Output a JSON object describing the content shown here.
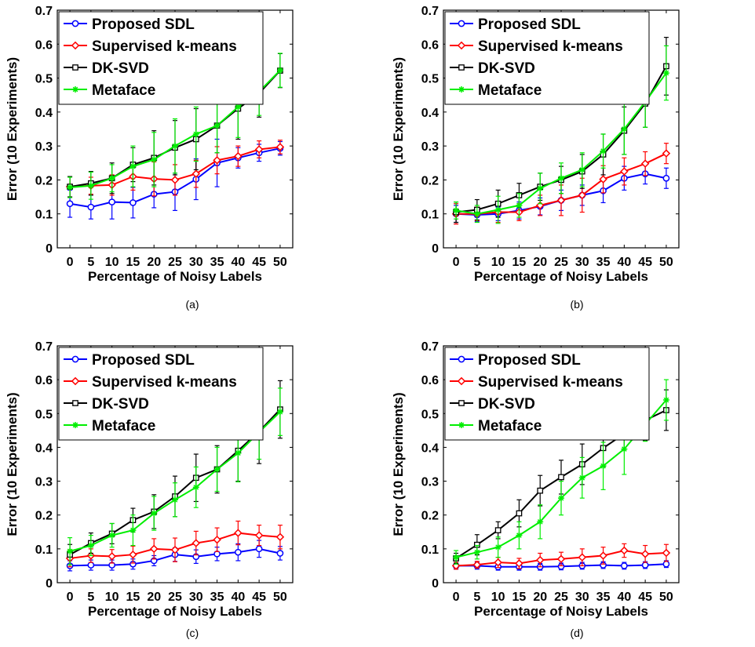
{
  "chart_data": [
    {
      "panel": "(a)",
      "type": "line",
      "xlabel": "Percentage of Noisy Labels",
      "ylabel": "Error (10 Experiments)",
      "x": [
        0,
        5,
        10,
        15,
        20,
        25,
        30,
        35,
        40,
        45,
        50
      ],
      "xlim": [
        -3,
        53
      ],
      "ylim": [
        0,
        0.7
      ],
      "yticks": [
        "0",
        "0.1",
        "0.2",
        "0.3",
        "0.4",
        "0.5",
        "0.6",
        "0.7"
      ],
      "legend_position": "top-left",
      "series": [
        {
          "name": "Proposed SDL",
          "color": "#0000ff",
          "marker": "circle",
          "values": [
            0.13,
            0.12,
            0.135,
            0.133,
            0.158,
            0.165,
            0.202,
            0.25,
            0.265,
            0.28,
            0.293
          ],
          "errors": [
            0.04,
            0.035,
            0.05,
            0.045,
            0.04,
            0.055,
            0.06,
            0.07,
            0.03,
            0.025,
            0.02
          ]
        },
        {
          "name": "Supervised k-means",
          "color": "#ff0000",
          "marker": "diamond",
          "values": [
            0.18,
            0.183,
            0.185,
            0.21,
            0.203,
            0.2,
            0.218,
            0.258,
            0.27,
            0.29,
            0.297
          ],
          "errors": [
            0.03,
            0.025,
            0.03,
            0.04,
            0.05,
            0.045,
            0.04,
            0.04,
            0.03,
            0.025,
            0.02
          ]
        },
        {
          "name": "DK-SVD",
          "color": "#000000",
          "marker": "square",
          "values": [
            0.18,
            0.19,
            0.205,
            0.245,
            0.265,
            0.295,
            0.32,
            0.36,
            0.41,
            0.455,
            0.522
          ],
          "errors": [
            0.03,
            0.035,
            0.045,
            0.05,
            0.08,
            0.08,
            0.09,
            0.08,
            0.09,
            0.07,
            0.05
          ]
        },
        {
          "name": "Metaface",
          "color": "#00ee00",
          "marker": "star",
          "values": [
            0.178,
            0.183,
            0.205,
            0.24,
            0.26,
            0.3,
            0.335,
            0.36,
            0.415,
            0.46,
            0.523
          ],
          "errors": [
            0.03,
            0.04,
            0.04,
            0.06,
            0.08,
            0.08,
            0.08,
            0.08,
            0.09,
            0.07,
            0.05
          ]
        }
      ]
    },
    {
      "panel": "(b)",
      "type": "line",
      "xlabel": "Percentage of Noisy Labels",
      "ylabel": "Error (10 Experiments)",
      "x": [
        0,
        5,
        10,
        15,
        20,
        25,
        30,
        35,
        40,
        45,
        50
      ],
      "xlim": [
        -3,
        53
      ],
      "ylim": [
        0,
        0.7
      ],
      "yticks": [
        "0",
        "0.1",
        "0.2",
        "0.3",
        "0.4",
        "0.5",
        "0.6",
        "0.7"
      ],
      "legend_position": "top-left",
      "series": [
        {
          "name": "Proposed SDL",
          "color": "#0000ff",
          "marker": "circle",
          "values": [
            0.1,
            0.097,
            0.1,
            0.11,
            0.122,
            0.14,
            0.155,
            0.168,
            0.205,
            0.218,
            0.205
          ],
          "errors": [
            0.025,
            0.02,
            0.02,
            0.025,
            0.025,
            0.03,
            0.03,
            0.035,
            0.035,
            0.03,
            0.03
          ]
        },
        {
          "name": "Supervised k-means",
          "color": "#ff0000",
          "marker": "diamond",
          "values": [
            0.1,
            0.1,
            0.105,
            0.105,
            0.125,
            0.14,
            0.155,
            0.202,
            0.225,
            0.248,
            0.278
          ],
          "errors": [
            0.03,
            0.02,
            0.03,
            0.025,
            0.03,
            0.045,
            0.05,
            0.04,
            0.04,
            0.035,
            0.03
          ]
        },
        {
          "name": "DK-SVD",
          "color": "#000000",
          "marker": "square",
          "values": [
            0.105,
            0.112,
            0.13,
            0.155,
            0.18,
            0.2,
            0.225,
            0.275,
            0.345,
            0.425,
            0.535
          ],
          "errors": [
            0.03,
            0.03,
            0.04,
            0.035,
            0.04,
            0.04,
            0.05,
            0.06,
            0.07,
            0.07,
            0.085
          ]
        },
        {
          "name": "Metaface",
          "color": "#00ee00",
          "marker": "star",
          "values": [
            0.11,
            0.1,
            0.112,
            0.125,
            0.175,
            0.205,
            0.23,
            0.285,
            0.35,
            0.43,
            0.515
          ],
          "errors": [
            0.025,
            0.025,
            0.04,
            0.035,
            0.045,
            0.045,
            0.05,
            0.05,
            0.075,
            0.075,
            0.08
          ]
        }
      ]
    },
    {
      "panel": "(c)",
      "type": "line",
      "xlabel": "Percentage of Noisy Labels",
      "ylabel": "Error (10 Experiments)",
      "x": [
        0,
        5,
        10,
        15,
        20,
        25,
        30,
        35,
        40,
        45,
        50
      ],
      "xlim": [
        -3,
        53
      ],
      "ylim": [
        0,
        0.7
      ],
      "yticks": [
        "0",
        "0.1",
        "0.2",
        "0.3",
        "0.4",
        "0.5",
        "0.6",
        "0.7"
      ],
      "legend_position": "top-left",
      "series": [
        {
          "name": "Proposed SDL",
          "color": "#0000ff",
          "marker": "circle",
          "values": [
            0.05,
            0.052,
            0.052,
            0.055,
            0.065,
            0.083,
            0.077,
            0.085,
            0.09,
            0.1,
            0.087
          ],
          "errors": [
            0.015,
            0.015,
            0.015,
            0.015,
            0.015,
            0.02,
            0.02,
            0.02,
            0.025,
            0.025,
            0.02
          ]
        },
        {
          "name": "Supervised k-means",
          "color": "#ff0000",
          "marker": "diamond",
          "values": [
            0.072,
            0.08,
            0.078,
            0.083,
            0.1,
            0.097,
            0.117,
            0.127,
            0.147,
            0.14,
            0.135
          ],
          "errors": [
            0.025,
            0.02,
            0.02,
            0.025,
            0.03,
            0.035,
            0.035,
            0.035,
            0.035,
            0.03,
            0.035
          ]
        },
        {
          "name": "DK-SVD",
          "color": "#000000",
          "marker": "square",
          "values": [
            0.083,
            0.117,
            0.145,
            0.185,
            0.21,
            0.255,
            0.31,
            0.335,
            0.39,
            0.447,
            0.512
          ],
          "errors": [
            0.03,
            0.03,
            0.03,
            0.035,
            0.05,
            0.06,
            0.07,
            0.07,
            0.09,
            0.095,
            0.085
          ]
        },
        {
          "name": "Metaface",
          "color": "#00ee00",
          "marker": "star",
          "values": [
            0.093,
            0.11,
            0.14,
            0.155,
            0.205,
            0.245,
            0.282,
            0.335,
            0.383,
            0.445,
            0.505
          ],
          "errors": [
            0.04,
            0.03,
            0.035,
            0.045,
            0.05,
            0.05,
            0.06,
            0.065,
            0.085,
            0.08,
            0.07
          ]
        }
      ]
    },
    {
      "panel": "(d)",
      "type": "line",
      "xlabel": "Percentage of Noisy Labels",
      "ylabel": "Error (10 Experiments)",
      "x": [
        0,
        5,
        10,
        15,
        20,
        25,
        30,
        35,
        40,
        45,
        50
      ],
      "xlim": [
        -3,
        53
      ],
      "ylim": [
        0,
        0.7
      ],
      "yticks": [
        "0",
        "0.1",
        "0.2",
        "0.3",
        "0.4",
        "0.5",
        "0.6",
        "0.7"
      ],
      "legend_position": "top-left",
      "series": [
        {
          "name": "Proposed SDL",
          "color": "#0000ff",
          "marker": "circle",
          "values": [
            0.05,
            0.05,
            0.047,
            0.047,
            0.047,
            0.048,
            0.05,
            0.052,
            0.05,
            0.052,
            0.055
          ],
          "errors": [
            0.01,
            0.01,
            0.01,
            0.01,
            0.01,
            0.01,
            0.01,
            0.01,
            0.01,
            0.01,
            0.01
          ]
        },
        {
          "name": "Supervised k-means",
          "color": "#ff0000",
          "marker": "diamond",
          "values": [
            0.05,
            0.053,
            0.06,
            0.057,
            0.067,
            0.07,
            0.075,
            0.08,
            0.095,
            0.085,
            0.088
          ],
          "errors": [
            0.01,
            0.01,
            0.015,
            0.015,
            0.02,
            0.02,
            0.025,
            0.025,
            0.02,
            0.025,
            0.025
          ]
        },
        {
          "name": "DK-SVD",
          "color": "#000000",
          "marker": "square",
          "values": [
            0.072,
            0.112,
            0.155,
            0.205,
            0.272,
            0.312,
            0.35,
            0.398,
            0.44,
            0.48,
            0.51
          ],
          "errors": [
            0.015,
            0.03,
            0.025,
            0.04,
            0.045,
            0.05,
            0.06,
            0.055,
            0.045,
            0.06,
            0.06
          ]
        },
        {
          "name": "Metaface",
          "color": "#00ee00",
          "marker": "star",
          "values": [
            0.075,
            0.09,
            0.105,
            0.14,
            0.18,
            0.25,
            0.31,
            0.345,
            0.395,
            0.468,
            0.54
          ],
          "errors": [
            0.02,
            0.02,
            0.03,
            0.04,
            0.05,
            0.05,
            0.06,
            0.07,
            0.075,
            0.05,
            0.06
          ]
        }
      ]
    }
  ]
}
